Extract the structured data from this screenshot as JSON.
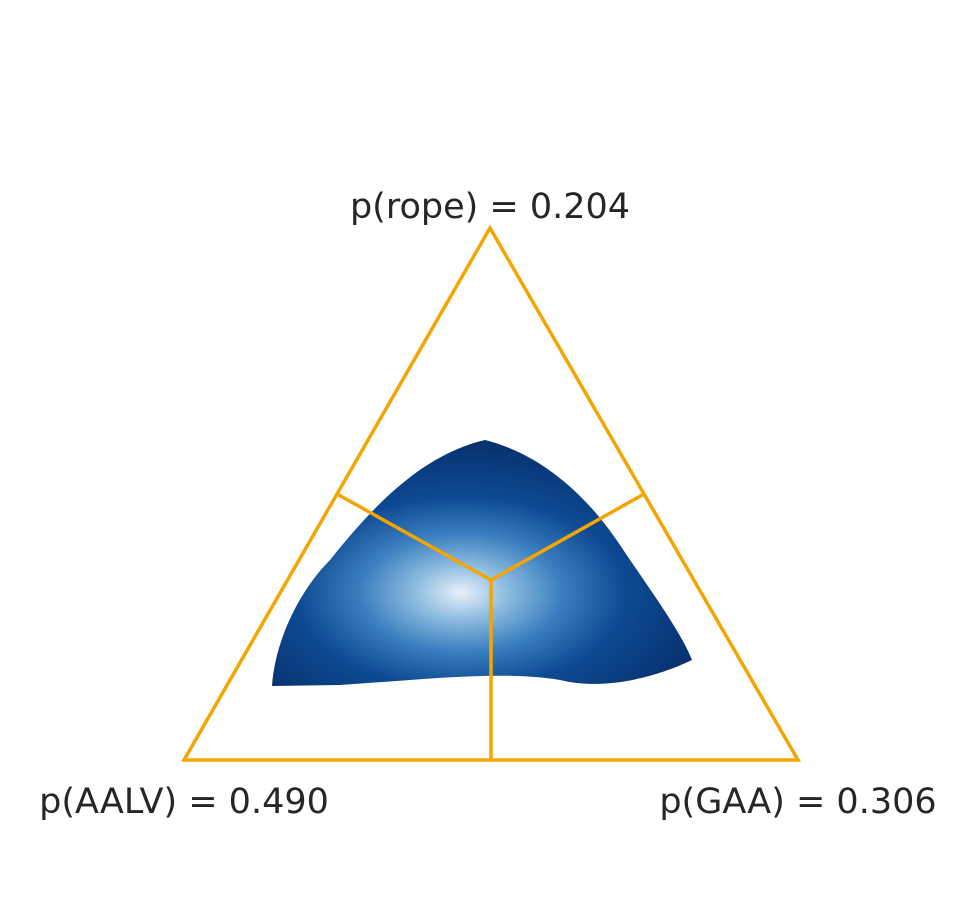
{
  "chart_data": {
    "type": "ternary",
    "vertex_labels": [
      "p(rope) = 0.204",
      "p(AALV) = 0.490",
      "p(GAA) = 0.306"
    ],
    "color": "#f5a500"
  }
}
